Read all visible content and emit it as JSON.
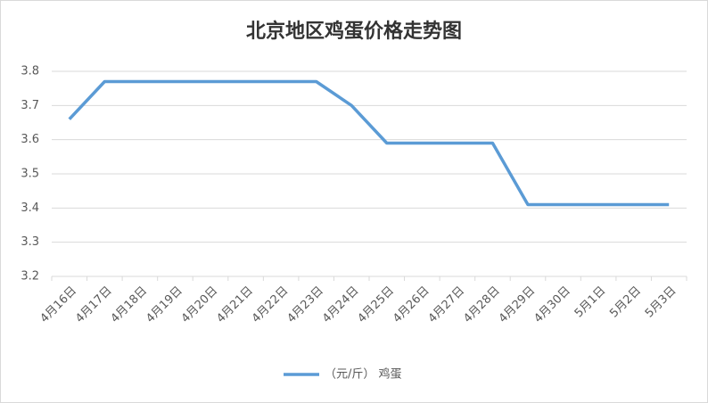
{
  "chart_data": {
    "type": "line",
    "title": "北京地区鸡蛋价格走势图",
    "categories": [
      "4月16日",
      "4月17日",
      "4月18日",
      "4月19日",
      "4月20日",
      "4月21日",
      "4月22日",
      "4月23日",
      "4月24日",
      "4月25日",
      "4月26日",
      "4月27日",
      "4月28日",
      "4月29日",
      "4月30日",
      "5月1日",
      "5月2日",
      "5月3日"
    ],
    "series": [
      {
        "name": "（元/斤） 鸡蛋",
        "color": "#5b9bd5",
        "values": [
          3.66,
          3.77,
          3.77,
          3.77,
          3.77,
          3.77,
          3.77,
          3.77,
          3.7,
          3.59,
          3.59,
          3.59,
          3.59,
          3.41,
          3.41,
          3.41,
          3.41,
          3.41
        ]
      }
    ],
    "ylim": [
      3.2,
      3.8
    ],
    "yticks": [
      3.2,
      3.3,
      3.4,
      3.5,
      3.6,
      3.7,
      3.8
    ],
    "grid": true,
    "legend": "bottom"
  }
}
